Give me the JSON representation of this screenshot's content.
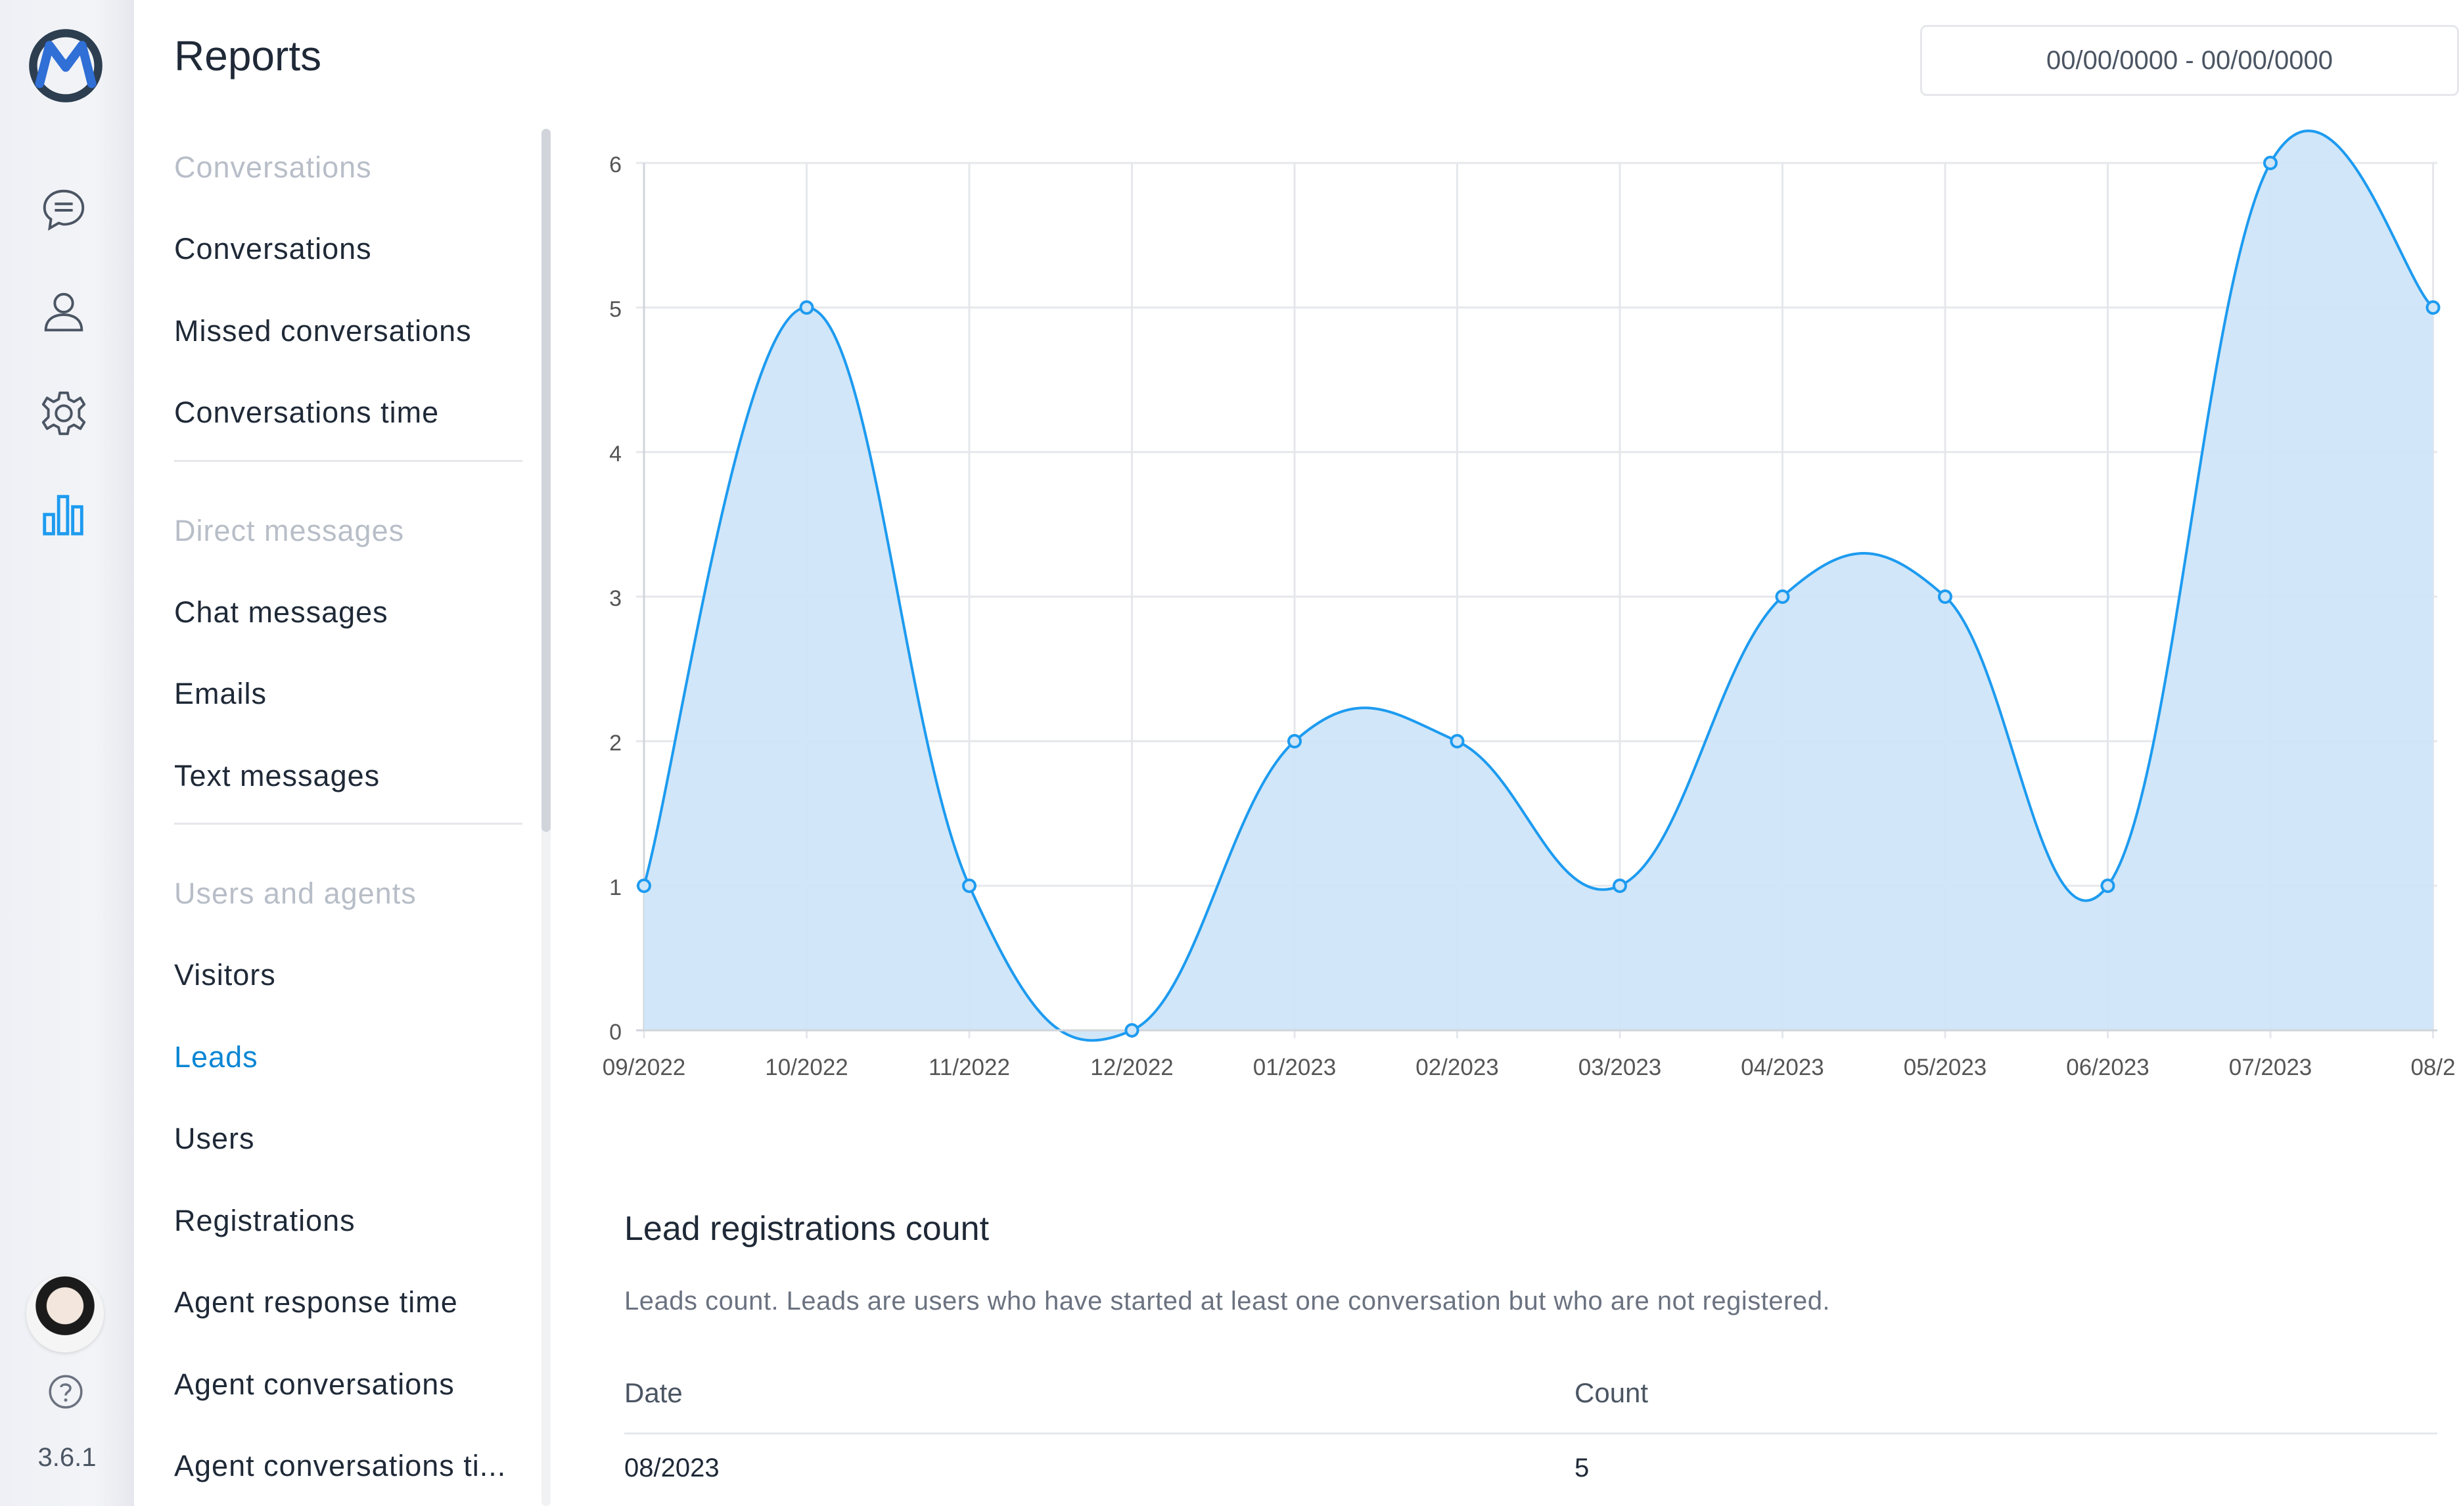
{
  "app": {
    "version": "3.6.1",
    "rail": [
      {
        "icon": "chat-bubble-icon"
      },
      {
        "icon": "user-icon"
      },
      {
        "icon": "gear-icon"
      },
      {
        "icon": "bar-chart-icon",
        "active": true
      }
    ]
  },
  "header": {
    "title": "Reports",
    "date_range": "00/00/0000 - 00/00/0000"
  },
  "nav": {
    "sections": [
      {
        "title": "Conversations",
        "items": [
          "Conversations",
          "Missed conversations",
          "Conversations time"
        ]
      },
      {
        "title": "Direct messages",
        "items": [
          "Chat messages",
          "Emails",
          "Text messages"
        ]
      },
      {
        "title": "Users and agents",
        "items": [
          "Visitors",
          "Leads",
          "Users",
          "Registrations",
          "Agent response time",
          "Agent conversations",
          "Agent conversations ti..."
        ]
      }
    ],
    "active_item": "Leads"
  },
  "chart_data": {
    "type": "area",
    "x": [
      "09/2022",
      "10/2022",
      "11/2022",
      "12/2022",
      "01/2023",
      "02/2023",
      "03/2023",
      "04/2023",
      "05/2023",
      "06/2023",
      "07/2023",
      "08/2"
    ],
    "series": [
      {
        "values": [
          1,
          5,
          1,
          0,
          2,
          2,
          1,
          3,
          3,
          1,
          6,
          5
        ]
      }
    ],
    "y_ticks": [
      "0",
      "1",
      "2",
      "3",
      "4",
      "5",
      "6"
    ],
    "ylim": [
      0,
      6
    ],
    "grid": true,
    "colors": {
      "line": "#1d9bf0",
      "fill": "#cfe5f8",
      "grid": "#e5e7eb"
    }
  },
  "table": {
    "title": "Lead registrations count",
    "description": "Leads count. Leads are users who have started at least one conversation but who are not registered.",
    "columns": [
      "Date",
      "Count"
    ],
    "rows": [
      [
        "08/2023",
        "5"
      ]
    ]
  }
}
